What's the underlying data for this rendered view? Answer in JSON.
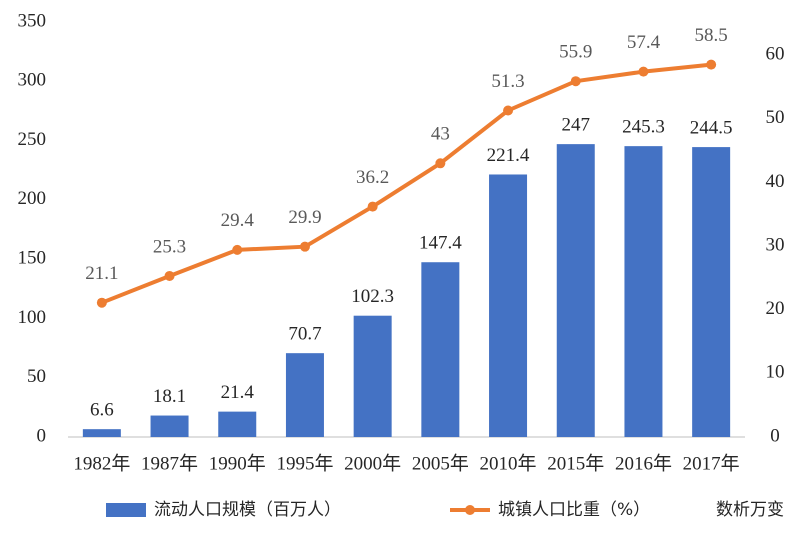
{
  "chart_data": {
    "type": "combo",
    "categories": [
      "1982年",
      "1987年",
      "1990年",
      "1995年",
      "2000年",
      "2005年",
      "2010年",
      "2015年",
      "2016年",
      "2017年"
    ],
    "series": [
      {
        "name": "流动人口规模（百万人）",
        "type": "bar",
        "color": "#4472c4",
        "values": [
          6.6,
          18.1,
          21.4,
          70.7,
          102.3,
          147.4,
          221.4,
          247,
          245.3,
          244.5
        ]
      },
      {
        "name": "城镇人口比重（%）",
        "type": "line",
        "axis": "y2",
        "color": "#ed7d31",
        "values": [
          21.1,
          25.3,
          29.4,
          29.9,
          36.2,
          43,
          51.3,
          55.9,
          57.4,
          58.5
        ]
      }
    ],
    "ylim": [
      0,
      350
    ],
    "yticks": [
      0,
      50,
      100,
      150,
      200,
      250,
      300,
      350
    ],
    "y2lim": [
      0,
      65.2
    ],
    "y2ticks": [
      0,
      10,
      20,
      30,
      40,
      50,
      60
    ],
    "grid": false
  },
  "watermark": "数析万变"
}
